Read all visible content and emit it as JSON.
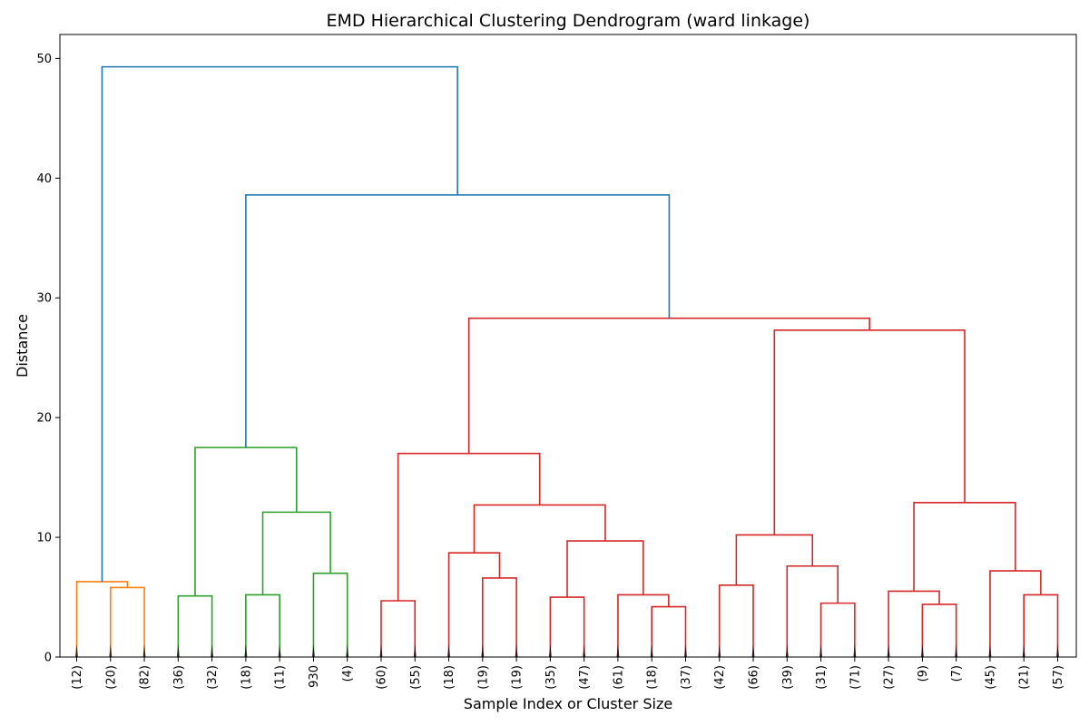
{
  "chart_data": {
    "type": "dendrogram",
    "title": "EMD Hierarchical Clustering Dendrogram (ward linkage)",
    "xlabel": "Sample Index or Cluster Size",
    "ylabel": "Distance",
    "ylim": [
      0,
      52
    ],
    "yticks": [
      0,
      10,
      20,
      30,
      40,
      50
    ],
    "leaf_labels": [
      "(12)",
      "(20)",
      "(82)",
      "(36)",
      "(32)",
      "(18)",
      "(11)",
      "930",
      "(4)",
      "(60)",
      "(55)",
      "(18)",
      "(19)",
      "(19)",
      "(35)",
      "(47)",
      "(61)",
      "(18)",
      "(37)",
      "(42)",
      "(66)",
      "(39)",
      "(31)",
      "(71)",
      "(27)",
      "(9)",
      "(7)",
      "(45)",
      "(21)",
      "(57)"
    ],
    "colors": {
      "above_threshold": "#1f77b4",
      "cluster_orange": "#ff7f0e",
      "cluster_green": "#2ca02c",
      "cluster_red": "#d62728",
      "leaf_marks": "#000000"
    },
    "merges": [
      {
        "a": 1,
        "b": 2,
        "height": 5.8,
        "color": "cluster_orange"
      },
      {
        "a": 0,
        "b": "m0",
        "height": 6.3,
        "color": "cluster_orange"
      },
      {
        "a": 3,
        "b": 4,
        "height": 5.1,
        "color": "cluster_green"
      },
      {
        "a": 5,
        "b": 6,
        "height": 5.2,
        "color": "cluster_green"
      },
      {
        "a": 7,
        "b": 8,
        "height": 7.0,
        "color": "cluster_green"
      },
      {
        "a": "m3",
        "b": "m4",
        "height": 12.1,
        "color": "cluster_green"
      },
      {
        "a": "m2",
        "b": "m5",
        "height": 17.5,
        "color": "cluster_green"
      },
      {
        "a": 9,
        "b": 10,
        "height": 4.7,
        "color": "cluster_red"
      },
      {
        "a": 12,
        "b": 13,
        "height": 6.6,
        "color": "cluster_red"
      },
      {
        "a": 11,
        "b": "m8",
        "height": 8.7,
        "color": "cluster_red"
      },
      {
        "a": 14,
        "b": 15,
        "height": 5.0,
        "color": "cluster_red"
      },
      {
        "a": 17,
        "b": 18,
        "height": 4.2,
        "color": "cluster_red"
      },
      {
        "a": 16,
        "b": "m11",
        "height": 5.2,
        "color": "cluster_red"
      },
      {
        "a": "m10",
        "b": "m12",
        "height": 9.7,
        "color": "cluster_red"
      },
      {
        "a": "m9",
        "b": "m13",
        "height": 12.7,
        "color": "cluster_red"
      },
      {
        "a": "m7",
        "b": "m14",
        "height": 17.0,
        "color": "cluster_red"
      },
      {
        "a": 19,
        "b": 20,
        "height": 6.0,
        "color": "cluster_red"
      },
      {
        "a": 22,
        "b": 23,
        "height": 4.5,
        "color": "cluster_red"
      },
      {
        "a": 21,
        "b": "m17",
        "height": 7.6,
        "color": "cluster_red"
      },
      {
        "a": "m16",
        "b": "m18",
        "height": 10.2,
        "color": "cluster_red"
      },
      {
        "a": 25,
        "b": 26,
        "height": 4.4,
        "color": "cluster_red"
      },
      {
        "a": 24,
        "b": "m20",
        "height": 5.5,
        "color": "cluster_red"
      },
      {
        "a": 28,
        "b": 29,
        "height": 5.2,
        "color": "cluster_red"
      },
      {
        "a": 27,
        "b": "m22",
        "height": 7.2,
        "color": "cluster_red"
      },
      {
        "a": "m21",
        "b": "m23",
        "height": 12.9,
        "color": "cluster_red"
      },
      {
        "a": "m19",
        "b": "m24",
        "height": 27.3,
        "color": "cluster_red"
      },
      {
        "a": "m15",
        "b": "m25",
        "height": 28.3,
        "color": "cluster_red"
      },
      {
        "a": "m6",
        "b": "m26",
        "height": 38.6,
        "color": "above_threshold"
      },
      {
        "a": "m1",
        "b": "m27",
        "height": 49.3,
        "color": "above_threshold"
      }
    ]
  }
}
